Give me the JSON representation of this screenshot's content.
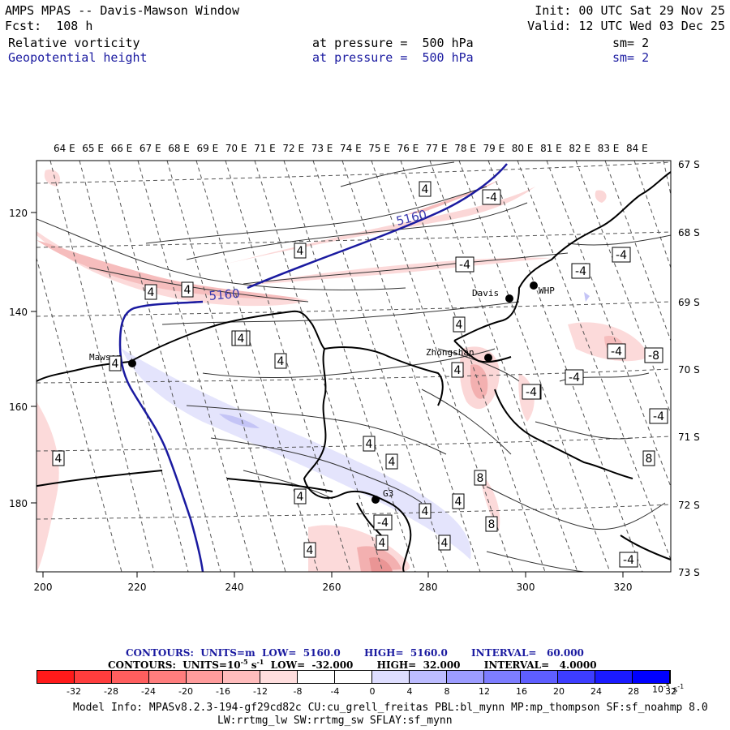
{
  "header": {
    "line1_left": "AMPS MPAS -- Davis-Mawson Window",
    "line1_right": "Init: 00 UTC Sat 29 Nov 25",
    "line2_left": "Fcst:  108 h",
    "line2_right": "Valid: 12 UTC Wed 03 Dec 25",
    "field1_name": "Relative vorticity",
    "field1_level": "at pressure =  500 hPa",
    "field1_sm": "sm= 2",
    "field2_name": "Geopotential height",
    "field2_level": "at pressure =  500 hPa",
    "field2_sm": "sm= 2"
  },
  "axes": {
    "top_lon_labels": [
      "64 E",
      "65 E",
      "66 E",
      "67 E",
      "68 E",
      "69 E",
      "70 E",
      "71 E",
      "72 E",
      "73 E",
      "74 E",
      "75 E",
      "76 E",
      "77 E",
      "78 E",
      "79 E",
      "80 E",
      "81 E",
      "82 E",
      "83 E",
      "84 E"
    ],
    "right_lat_labels": [
      "67 S",
      "68 S",
      "69 S",
      "70 S",
      "71 S",
      "72 S",
      "73 S"
    ],
    "bottom_x_labels": [
      "200",
      "220",
      "240",
      "260",
      "280",
      "300",
      "320"
    ],
    "left_y_labels": [
      "120",
      "140",
      "160",
      "180"
    ]
  },
  "stations": [
    {
      "name": "Mawson",
      "id": "mawson"
    },
    {
      "name": "Davis",
      "id": "davis"
    },
    {
      "name": "WHP",
      "id": "whp"
    },
    {
      "name": "Zhongshan",
      "id": "zhongshan"
    },
    {
      "name": "G3",
      "id": "g3"
    }
  ],
  "contour_labels": {
    "height": [
      "5160",
      "5160"
    ],
    "vorticity": [
      "4",
      "-4",
      "4",
      "-4",
      "-4",
      "-4",
      "4",
      "4",
      "-4",
      "4",
      "4",
      "4",
      "4",
      "-4",
      "-8",
      "-4",
      "-4",
      "-4",
      "4",
      "4",
      "8",
      "8",
      "4",
      "4",
      "4",
      "8",
      "4",
      "-4",
      "4",
      "4",
      "-4",
      "4",
      "-4",
      "4",
      "4"
    ]
  },
  "legend": {
    "line1_label": "CONTOURS:  UNITS=m  LOW=  5160.0       HIGH=  5160.0       INTERVAL=   60.000",
    "line2_label": "CONTOURS:  UNITS=10",
    "line2_exp": "-5",
    "line2_unit": " s",
    "line2_exp2": "-1",
    "line2_rest": "  LOW=  -32.000       HIGH=  32.000       INTERVAL=   4.0000",
    "colorbar_colors": [
      "#ff1a1a",
      "#ff3d3d",
      "#ff5e5e",
      "#ff7d7d",
      "#ff9c9c",
      "#ffbcbc",
      "#ffdede",
      "#ffffff",
      "#ffffff",
      "#dedeff",
      "#bcbcff",
      "#9c9cff",
      "#7d7dff",
      "#5e5eff",
      "#3d3dff",
      "#1a1aff",
      "#0000ff"
    ],
    "colorbar_ticks": [
      "-32",
      "-28",
      "-24",
      "-20",
      "-16",
      "-12",
      "-8",
      "-4",
      "0",
      "4",
      "8",
      "12",
      "16",
      "20",
      "24",
      "28",
      "32"
    ],
    "colorbar_unit": "10",
    "colorbar_unit_exp": "-5",
    "colorbar_unit_tail": " s",
    "colorbar_unit_exp2": "-1"
  },
  "footer": {
    "line1": "Model Info: MPASv8.2.3-194-gf29cd82c CU:cu_grell_freitas PBL:bl_mynn MP:mp_thompson SF:sf_noahmp 8.0",
    "line2": "LW:rrtmg_lw SW:rrtmg_sw SFLAY:sf_mynn"
  }
}
